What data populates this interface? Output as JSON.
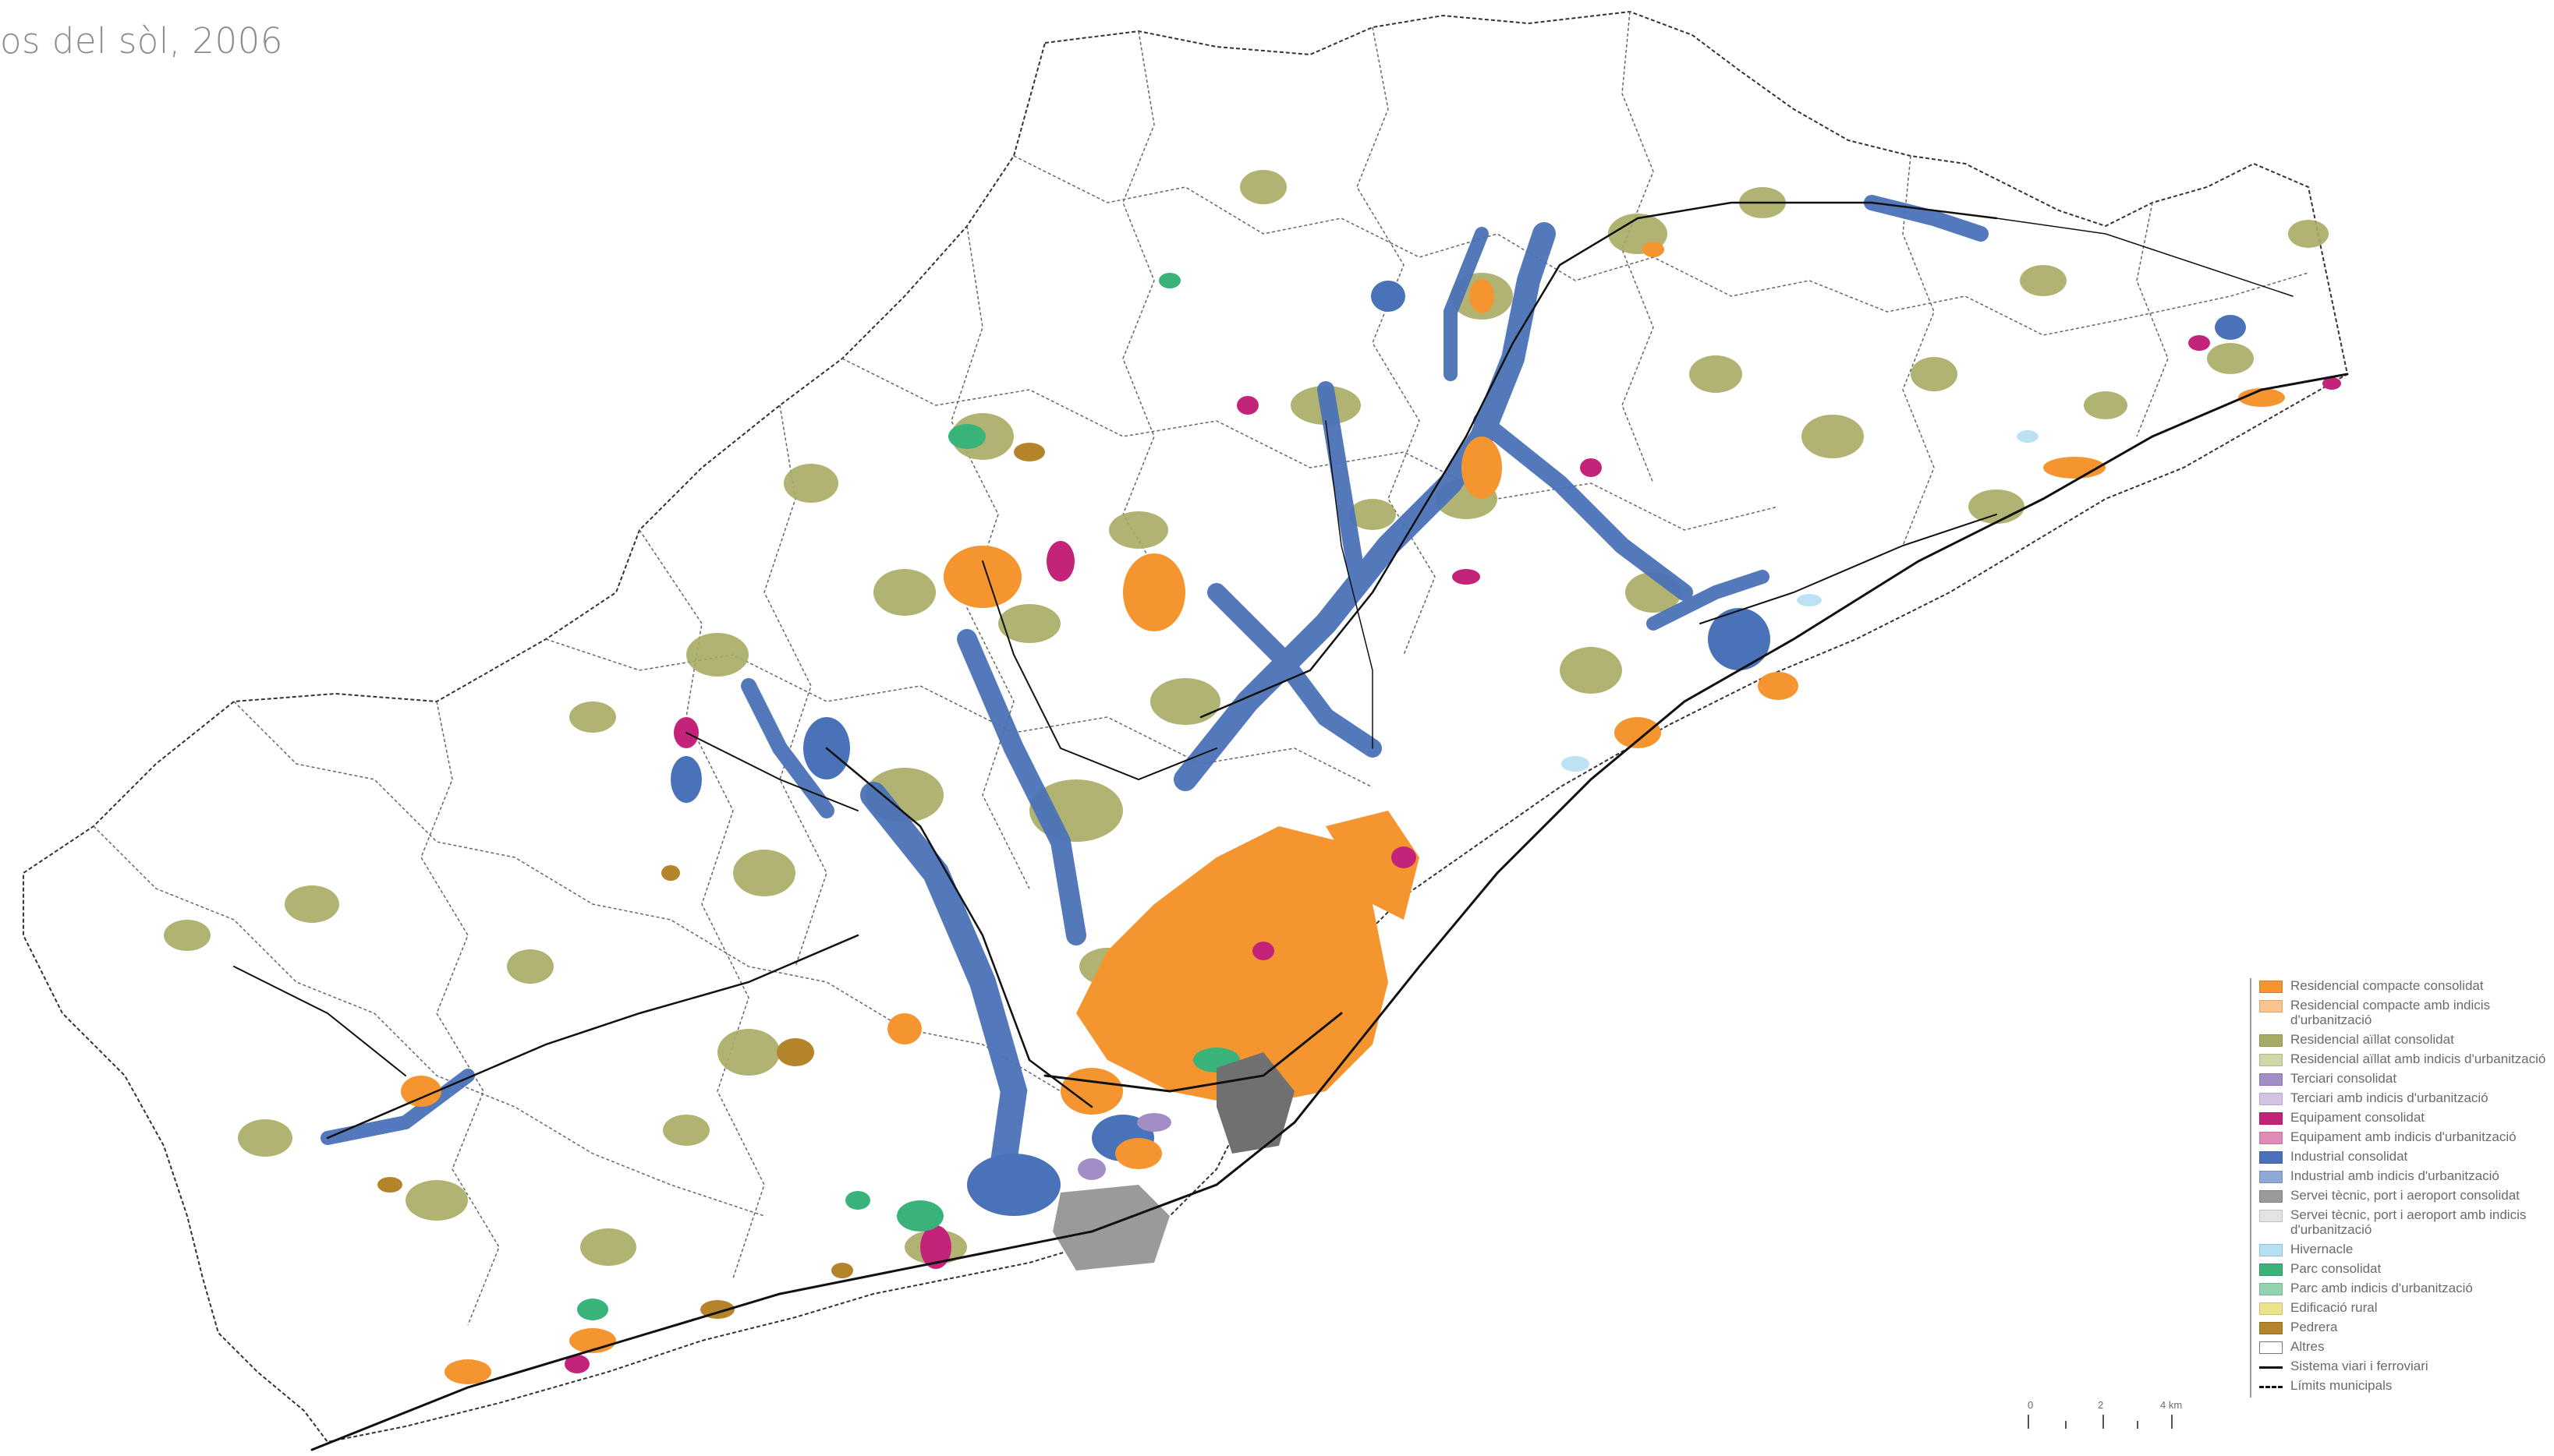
{
  "title": "os del sòl, 2006",
  "colors": {
    "residencial_compacte": "#f5952f",
    "residencial_aillat": "#a8ab63",
    "industrial": "#4a72b8",
    "equipament": "#c4237a",
    "parc": "#39b37a",
    "pedrera": "#b38429",
    "servei": "#9a9a9a",
    "terciari": "#a38dc6",
    "hivernacle": "#b5dff2"
  },
  "legend": {
    "items": [
      {
        "label": "Residencial compacte consolidat",
        "color": "#f5952f",
        "kind": "swatch"
      },
      {
        "label": "Residencial compacte amb indicis d'urbanització",
        "color": "#fac48a",
        "kind": "swatch"
      },
      {
        "label": "Residencial aïllat consolidat",
        "color": "#a8ab63",
        "kind": "swatch"
      },
      {
        "label": "Residencial aïllat amb indicis d'urbanització",
        "color": "#d4d6a8",
        "kind": "swatch"
      },
      {
        "label": "Terciari consolidat",
        "color": "#a38dc6",
        "kind": "swatch"
      },
      {
        "label": "Terciari amb indicis d'urbanització",
        "color": "#d2c4e2",
        "kind": "swatch"
      },
      {
        "label": "Equipament consolidat",
        "color": "#c4237a",
        "kind": "swatch"
      },
      {
        "label": "Equipament amb indicis d'urbanització",
        "color": "#e08ab6",
        "kind": "swatch"
      },
      {
        "label": "Industrial consolidat",
        "color": "#4a72b8",
        "kind": "swatch"
      },
      {
        "label": "Industrial amb indicis d'urbanització",
        "color": "#8ea9d8",
        "kind": "swatch"
      },
      {
        "label": "Servei tècnic, port i aeroport consolidat",
        "color": "#9a9a9a",
        "kind": "swatch"
      },
      {
        "label": "Servei tècnic, port i aeroport amb indicis d'urbanització",
        "color": "#e3e3e3",
        "kind": "swatch"
      },
      {
        "label": "Hivernacle",
        "color": "#b5dff2",
        "kind": "swatch"
      },
      {
        "label": "Parc consolidat",
        "color": "#39b37a",
        "kind": "swatch"
      },
      {
        "label": "Parc amb indicis d'urbanització",
        "color": "#93d3b0",
        "kind": "swatch"
      },
      {
        "label": "Edificació rural",
        "color": "#ede38a",
        "kind": "swatch"
      },
      {
        "label": "Pedrera",
        "color": "#b38429",
        "kind": "swatch"
      },
      {
        "label": "Altres",
        "color": "#ffffff",
        "kind": "swatch"
      },
      {
        "label": "Sistema viari i ferroviari",
        "color": "#111111",
        "kind": "line-solid"
      },
      {
        "label": "Límits municipals",
        "color": "#111111",
        "kind": "line-dashed"
      }
    ]
  },
  "scale": {
    "labels": [
      "0",
      "2",
      "4 km"
    ]
  }
}
